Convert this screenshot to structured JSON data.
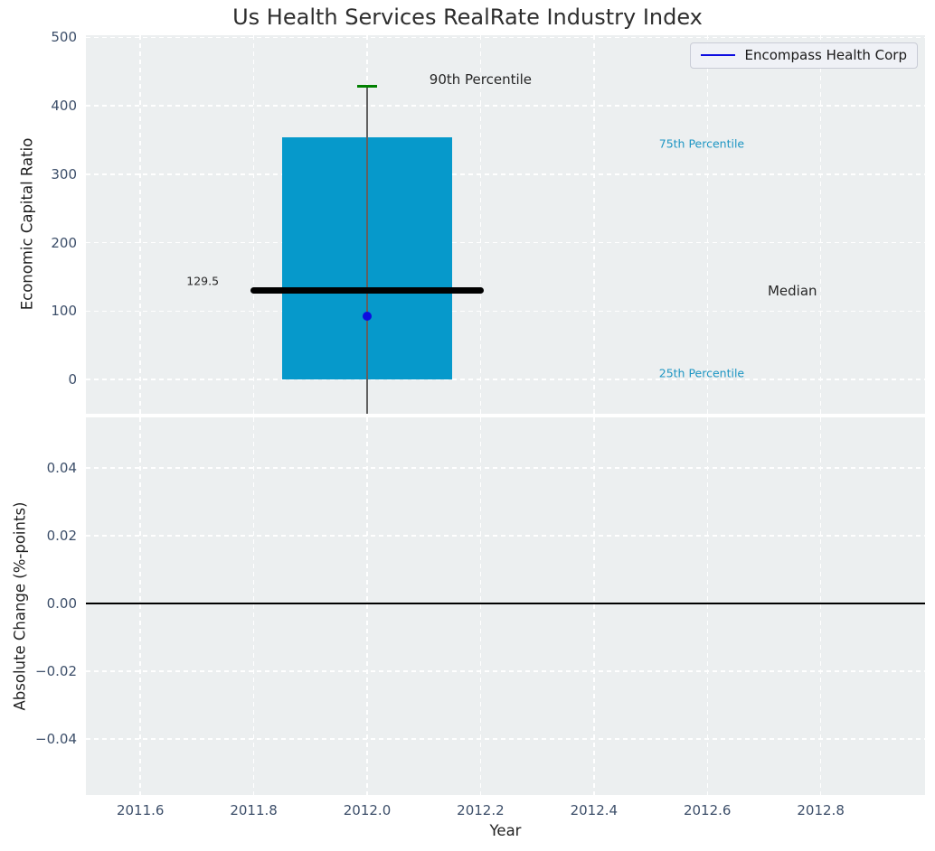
{
  "figure": {
    "title": "Us Health Services RealRate Industry Index"
  },
  "colors": {
    "axes_bg": "#ECEFF0",
    "grid": "#FFFFFF",
    "tick_label": "#3D4F6A",
    "text": "#1f1f1f",
    "box_fill": "#0699CB",
    "whisker": "#606060",
    "cap_green": "#008000",
    "median_black": "#000000",
    "company_blue": "#0D0DE0",
    "percentile_label": "#1E96C3"
  },
  "legend": {
    "label": "Encompass Health Corp"
  },
  "chart_data": [
    {
      "type": "box",
      "title": "Us Health Services RealRate Industry Index",
      "ylabel": "Economic Capital Ratio",
      "xlim": [
        2011.504,
        2012.984
      ],
      "ylim": [
        -50,
        503
      ],
      "yticks": [
        0,
        100,
        200,
        300,
        400,
        500
      ],
      "ytick_labels": [
        "0",
        "100",
        "200",
        "300",
        "400",
        "500"
      ],
      "xticks": [
        2011.6,
        2011.8,
        2012.0,
        2012.2,
        2012.4,
        2012.6,
        2012.8
      ],
      "grid": true,
      "legend_position": "upper right",
      "box": {
        "x": 2012,
        "width": 0.3,
        "q25": 0,
        "median": 129.5,
        "q75": 354,
        "p90": 428,
        "whisker_low": -50,
        "median_width": 0.41,
        "cap_width": 0.035
      },
      "company_point": {
        "name": "Encompass Health Corp",
        "x": 2012,
        "y": 92
      },
      "annotations": [
        {
          "text": "90th Percentile",
          "x": 2012.2,
          "y": 438,
          "color": "#262626",
          "size": "md"
        },
        {
          "text": "129.5",
          "x": 2011.71,
          "y": 144,
          "color": "#262626",
          "size": "sm"
        },
        {
          "text": "Median",
          "x": 2012.75,
          "y": 129.5,
          "color": "#262626",
          "size": "md"
        },
        {
          "text": "75th Percentile",
          "x": 2012.59,
          "y": 345,
          "color": "#1E96C3",
          "size": "sm"
        },
        {
          "text": "25th Percentile",
          "x": 2012.59,
          "y": 9,
          "color": "#1E96C3",
          "size": "sm"
        }
      ]
    },
    {
      "type": "line",
      "ylabel": "Absolute Change (%-points)",
      "xlabel": "Year",
      "xlim": [
        2011.504,
        2012.984
      ],
      "ylim": [
        -0.0565,
        0.0549
      ],
      "yticks": [
        -0.04,
        -0.02,
        0,
        0.02,
        0.04
      ],
      "ytick_labels": [
        "−0.04",
        "−0.02",
        "0.00",
        "0.02",
        "0.04"
      ],
      "xticks": [
        2011.6,
        2011.8,
        2012.0,
        2012.2,
        2012.4,
        2012.6,
        2012.8
      ],
      "xtick_labels": [
        "2011.6",
        "2011.8",
        "2012.0",
        "2012.2",
        "2012.4",
        "2012.6",
        "2012.8"
      ],
      "grid": true,
      "zero_line": 0,
      "series": []
    }
  ]
}
